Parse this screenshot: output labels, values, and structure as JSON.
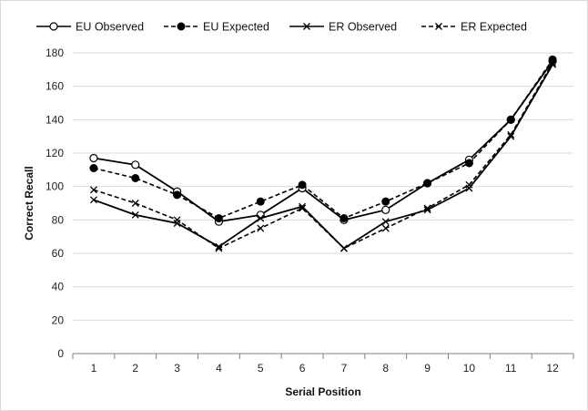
{
  "chart_data": {
    "type": "line",
    "title": "",
    "xlabel": "Serial Position",
    "ylabel": "Correct Recall",
    "x": [
      1,
      2,
      3,
      4,
      5,
      6,
      7,
      8,
      9,
      10,
      11,
      12
    ],
    "ylim": [
      0,
      180
    ],
    "yticks": [
      0,
      20,
      40,
      60,
      80,
      100,
      120,
      140,
      160,
      180
    ],
    "grid": "horizontal",
    "legend_position": "top",
    "series": [
      {
        "name": "EU Observed",
        "values": [
          117,
          113,
          97,
          79,
          83,
          99,
          80,
          86,
          102,
          116,
          140,
          175
        ],
        "line": "solid",
        "marker": "open-circle"
      },
      {
        "name": "EU Expected",
        "values": [
          111,
          105,
          95,
          81,
          91,
          101,
          81,
          91,
          102,
          114,
          140,
          176
        ],
        "line": "dashed",
        "marker": "filled-circle"
      },
      {
        "name": "ER Observed",
        "values": [
          92,
          83,
          78,
          64,
          81,
          88,
          63,
          79,
          86,
          99,
          130,
          173
        ],
        "line": "solid",
        "marker": "x"
      },
      {
        "name": "ER Expected",
        "values": [
          98,
          90,
          80,
          63,
          75,
          87,
          63,
          75,
          87,
          101,
          131,
          174
        ],
        "line": "dashed",
        "marker": "x"
      }
    ]
  },
  "colors": {
    "line": "#000000",
    "grid": "#d9d9d9",
    "axis": "#7f7f7f",
    "frame": "#d9d9d9"
  }
}
